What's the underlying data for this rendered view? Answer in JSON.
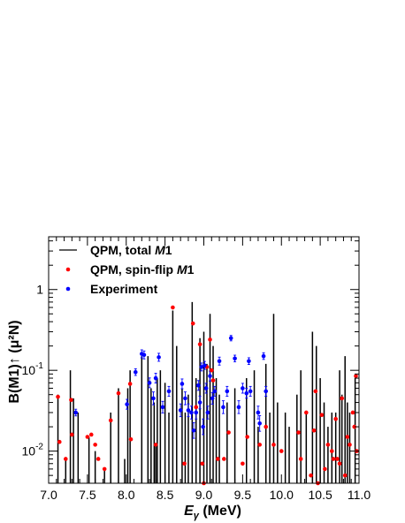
{
  "chart_data": {
    "type": "scatter",
    "xlabel": "E",
    "xlabel_sub": "γ",
    "xlabel_unit": " (MeV)",
    "ylabel": "B(M1)↑ (μ²N)",
    "xlim": [
      7.0,
      11.0
    ],
    "ylim": [
      0.004,
      4.5
    ],
    "yscale": "log",
    "x_ticks": [
      "7.0",
      "7.5",
      "8.0",
      "8.5",
      "9.0",
      "9.5",
      "10.0",
      "10.5",
      "11.0"
    ],
    "y_ticks": [
      {
        "mantissa": "10",
        "exponent": "-2",
        "value": 0.01
      },
      {
        "mantissa": "10",
        "exponent": "-1",
        "value": 0.1
      },
      {
        "mantissa": "1",
        "exponent": "",
        "value": 1
      }
    ],
    "legend": {
      "position": "top-left",
      "entries": [
        {
          "prefix": "QPM, total ",
          "italic": "M",
          "suffix": "1",
          "symbol": "line"
        },
        {
          "prefix": "QPM, spin-flip ",
          "italic": "M",
          "suffix": "1",
          "symbol": "red-dot"
        },
        {
          "prefix": "Experiment",
          "italic": "",
          "suffix": "",
          "symbol": "blue-dot"
        }
      ]
    },
    "colors": {
      "qpm_total": "#000000",
      "qpm_spinflip": "#ff0000",
      "experiment": "#0000ff"
    },
    "series": [
      {
        "name": "QPM, total M1",
        "kind": "stick",
        "points": [
          {
            "x": 7.12,
            "y": 0.05
          },
          {
            "x": 7.22,
            "y": 0.008
          },
          {
            "x": 7.28,
            "y": 0.1
          },
          {
            "x": 7.32,
            "y": 0.045
          },
          {
            "x": 7.38,
            "y": 0.03
          },
          {
            "x": 7.52,
            "y": 0.015
          },
          {
            "x": 7.6,
            "y": 0.01
          },
          {
            "x": 7.72,
            "y": 0.006
          },
          {
            "x": 7.8,
            "y": 0.03
          },
          {
            "x": 7.9,
            "y": 0.06
          },
          {
            "x": 7.98,
            "y": 0.008
          },
          {
            "x": 8.02,
            "y": 0.06
          },
          {
            "x": 8.05,
            "y": 0.1
          },
          {
            "x": 8.2,
            "y": 0.15
          },
          {
            "x": 8.28,
            "y": 0.15
          },
          {
            "x": 8.32,
            "y": 0.06
          },
          {
            "x": 8.36,
            "y": 0.04
          },
          {
            "x": 8.38,
            "y": 0.012
          },
          {
            "x": 8.4,
            "y": 0.08
          },
          {
            "x": 8.44,
            "y": 0.1
          },
          {
            "x": 8.5,
            "y": 0.07
          },
          {
            "x": 8.55,
            "y": 0.03
          },
          {
            "x": 8.6,
            "y": 0.55
          },
          {
            "x": 8.65,
            "y": 0.2
          },
          {
            "x": 8.72,
            "y": 0.06
          },
          {
            "x": 8.76,
            "y": 0.03
          },
          {
            "x": 8.8,
            "y": 0.05
          },
          {
            "x": 8.85,
            "y": 0.7
          },
          {
            "x": 8.9,
            "y": 0.08
          },
          {
            "x": 8.95,
            "y": 0.25
          },
          {
            "x": 9.0,
            "y": 0.3
          },
          {
            "x": 9.04,
            "y": 0.12
          },
          {
            "x": 9.08,
            "y": 0.5
          },
          {
            "x": 9.12,
            "y": 0.2
          },
          {
            "x": 9.16,
            "y": 0.08
          },
          {
            "x": 9.2,
            "y": 0.05
          },
          {
            "x": 9.3,
            "y": 0.04
          },
          {
            "x": 9.4,
            "y": 0.06
          },
          {
            "x": 9.55,
            "y": 0.08
          },
          {
            "x": 9.65,
            "y": 0.1
          },
          {
            "x": 9.7,
            "y": 0.02
          },
          {
            "x": 9.8,
            "y": 0.12
          },
          {
            "x": 9.85,
            "y": 0.03
          },
          {
            "x": 9.9,
            "y": 0.5
          },
          {
            "x": 9.95,
            "y": 0.04
          },
          {
            "x": 10.05,
            "y": 0.03
          },
          {
            "x": 10.1,
            "y": 0.02
          },
          {
            "x": 10.2,
            "y": 0.05
          },
          {
            "x": 10.25,
            "y": 0.1
          },
          {
            "x": 10.32,
            "y": 0.03
          },
          {
            "x": 10.4,
            "y": 0.3
          },
          {
            "x": 10.45,
            "y": 0.2
          },
          {
            "x": 10.5,
            "y": 0.08
          },
          {
            "x": 10.55,
            "y": 0.04
          },
          {
            "x": 10.6,
            "y": 0.02
          },
          {
            "x": 10.65,
            "y": 0.03
          },
          {
            "x": 10.7,
            "y": 0.03
          },
          {
            "x": 10.75,
            "y": 0.1
          },
          {
            "x": 10.78,
            "y": 0.05
          },
          {
            "x": 10.82,
            "y": 0.15
          },
          {
            "x": 10.85,
            "y": 0.04
          },
          {
            "x": 10.88,
            "y": 0.03
          },
          {
            "x": 10.95,
            "y": 0.08
          }
        ]
      },
      {
        "name": "QPM, spin-flip M1",
        "kind": "dot",
        "points": [
          {
            "x": 7.12,
            "y": 0.047
          },
          {
            "x": 7.14,
            "y": 0.013
          },
          {
            "x": 7.22,
            "y": 0.008
          },
          {
            "x": 7.29,
            "y": 0.043
          },
          {
            "x": 7.3,
            "y": 0.016
          },
          {
            "x": 7.5,
            "y": 0.015
          },
          {
            "x": 7.55,
            "y": 0.016
          },
          {
            "x": 7.6,
            "y": 0.012
          },
          {
            "x": 7.64,
            "y": 0.008
          },
          {
            "x": 7.72,
            "y": 0.006
          },
          {
            "x": 7.8,
            "y": 0.024
          },
          {
            "x": 7.9,
            "y": 0.052
          },
          {
            "x": 8.05,
            "y": 0.068
          },
          {
            "x": 8.06,
            "y": 0.014
          },
          {
            "x": 8.38,
            "y": 0.012
          },
          {
            "x": 8.6,
            "y": 0.6
          },
          {
            "x": 8.75,
            "y": 0.007
          },
          {
            "x": 8.86,
            "y": 0.38
          },
          {
            "x": 8.9,
            "y": 0.035
          },
          {
            "x": 8.95,
            "y": 0.21
          },
          {
            "x": 8.98,
            "y": 0.007
          },
          {
            "x": 9.0,
            "y": 0.004
          },
          {
            "x": 9.04,
            "y": 0.11
          },
          {
            "x": 9.08,
            "y": 0.24
          },
          {
            "x": 9.1,
            "y": 0.1
          },
          {
            "x": 9.12,
            "y": 0.075
          },
          {
            "x": 9.18,
            "y": 0.008
          },
          {
            "x": 9.26,
            "y": 0.008
          },
          {
            "x": 9.32,
            "y": 0.017
          },
          {
            "x": 9.5,
            "y": 0.007
          },
          {
            "x": 9.56,
            "y": 0.015
          },
          {
            "x": 9.72,
            "y": 0.012
          },
          {
            "x": 9.8,
            "y": 0.02
          },
          {
            "x": 9.9,
            "y": 0.012
          },
          {
            "x": 10.0,
            "y": 0.01
          },
          {
            "x": 10.22,
            "y": 0.017
          },
          {
            "x": 10.25,
            "y": 0.008
          },
          {
            "x": 10.32,
            "y": 0.03
          },
          {
            "x": 10.38,
            "y": 0.005
          },
          {
            "x": 10.42,
            "y": 0.018
          },
          {
            "x": 10.44,
            "y": 0.055
          },
          {
            "x": 10.47,
            "y": 0.004
          },
          {
            "x": 10.52,
            "y": 0.028
          },
          {
            "x": 10.56,
            "y": 0.006
          },
          {
            "x": 10.6,
            "y": 0.012
          },
          {
            "x": 10.65,
            "y": 0.01
          },
          {
            "x": 10.67,
            "y": 0.008
          },
          {
            "x": 10.7,
            "y": 0.025
          },
          {
            "x": 10.72,
            "y": 0.008
          },
          {
            "x": 10.75,
            "y": 0.007
          },
          {
            "x": 10.78,
            "y": 0.045
          },
          {
            "x": 10.82,
            "y": 0.005
          },
          {
            "x": 10.85,
            "y": 0.015
          },
          {
            "x": 10.88,
            "y": 0.012
          },
          {
            "x": 10.92,
            "y": 0.03
          },
          {
            "x": 10.94,
            "y": 0.02
          },
          {
            "x": 10.96,
            "y": 0.085
          },
          {
            "x": 10.97,
            "y": 0.01
          }
        ]
      },
      {
        "name": "Experiment",
        "kind": "errorbar",
        "points": [
          {
            "x": 7.35,
            "y": 0.03,
            "err": 0.1
          },
          {
            "x": 8.01,
            "y": 0.038,
            "err": 0.15
          },
          {
            "x": 8.12,
            "y": 0.095,
            "err": 0.1
          },
          {
            "x": 8.2,
            "y": 0.16,
            "err": 0.12
          },
          {
            "x": 8.23,
            "y": 0.155,
            "err": 0.12
          },
          {
            "x": 8.3,
            "y": 0.07,
            "err": 0.15
          },
          {
            "x": 8.35,
            "y": 0.045,
            "err": 0.2
          },
          {
            "x": 8.38,
            "y": 0.08,
            "err": 0.15
          },
          {
            "x": 8.42,
            "y": 0.145,
            "err": 0.12
          },
          {
            "x": 8.47,
            "y": 0.035,
            "err": 0.18
          },
          {
            "x": 8.55,
            "y": 0.055,
            "err": 0.15
          },
          {
            "x": 8.7,
            "y": 0.032,
            "err": 0.2
          },
          {
            "x": 8.72,
            "y": 0.068,
            "err": 0.15
          },
          {
            "x": 8.76,
            "y": 0.045,
            "err": 0.2
          },
          {
            "x": 8.8,
            "y": 0.032,
            "err": 0.2
          },
          {
            "x": 8.84,
            "y": 0.03,
            "err": 0.2
          },
          {
            "x": 8.87,
            "y": 0.018,
            "err": 0.25
          },
          {
            "x": 8.9,
            "y": 0.03,
            "err": 0.2
          },
          {
            "x": 8.93,
            "y": 0.065,
            "err": 0.15
          },
          {
            "x": 8.95,
            "y": 0.04,
            "err": 0.2
          },
          {
            "x": 8.97,
            "y": 0.11,
            "err": 0.12
          },
          {
            "x": 8.99,
            "y": 0.02,
            "err": 0.25
          },
          {
            "x": 9.01,
            "y": 0.115,
            "err": 0.12
          },
          {
            "x": 9.03,
            "y": 0.06,
            "err": 0.15
          },
          {
            "x": 9.05,
            "y": 0.03,
            "err": 0.2
          },
          {
            "x": 9.08,
            "y": 0.085,
            "err": 0.15
          },
          {
            "x": 9.11,
            "y": 0.045,
            "err": 0.18
          },
          {
            "x": 9.14,
            "y": 0.055,
            "err": 0.15
          },
          {
            "x": 9.2,
            "y": 0.13,
            "err": 0.12
          },
          {
            "x": 9.25,
            "y": 0.035,
            "err": 0.2
          },
          {
            "x": 9.3,
            "y": 0.055,
            "err": 0.15
          },
          {
            "x": 9.35,
            "y": 0.25,
            "err": 0.08
          },
          {
            "x": 9.4,
            "y": 0.14,
            "err": 0.1
          },
          {
            "x": 9.45,
            "y": 0.035,
            "err": 0.2
          },
          {
            "x": 9.5,
            "y": 0.06,
            "err": 0.15
          },
          {
            "x": 9.55,
            "y": 0.052,
            "err": 0.15
          },
          {
            "x": 9.58,
            "y": 0.13,
            "err": 0.1
          },
          {
            "x": 9.6,
            "y": 0.055,
            "err": 0.15
          },
          {
            "x": 9.7,
            "y": 0.03,
            "err": 0.2
          },
          {
            "x": 9.72,
            "y": 0.022,
            "err": 0.25
          },
          {
            "x": 9.77,
            "y": 0.15,
            "err": 0.1
          },
          {
            "x": 9.8,
            "y": 0.055,
            "err": 0.15
          }
        ]
      }
    ]
  }
}
